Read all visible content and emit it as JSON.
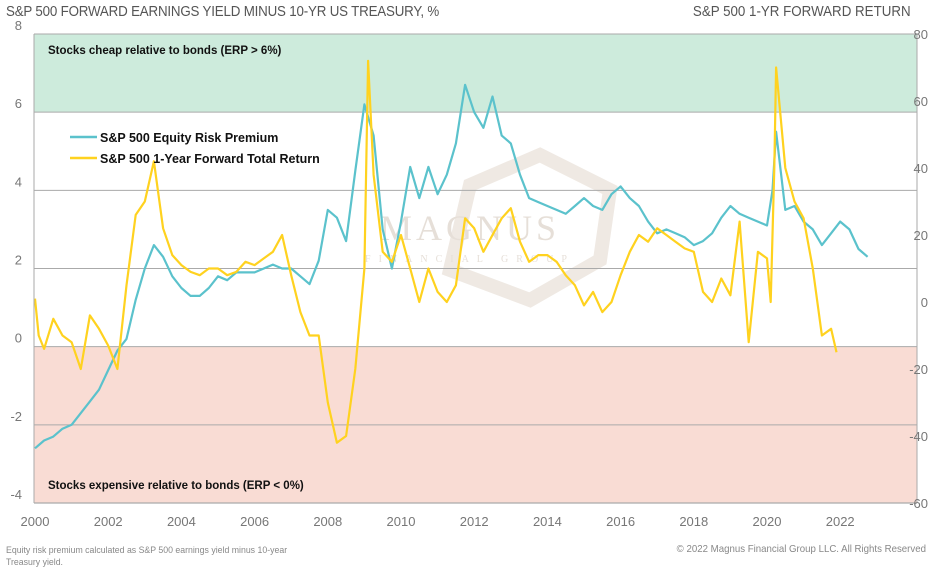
{
  "header": {
    "title_left": "S&P 500 FORWARD EARNINGS YIELD MINUS 10-YR US TREASURY, %",
    "title_right": "S&P 500 1-YR FORWARD RETURN"
  },
  "footer": {
    "footnote": "Equity risk premium calculated as S&P 500 earnings yield minus 10-year Treasury yield.",
    "copyright": "© 2022 Magnus Financial Group LLC. All Rights Reserved"
  },
  "watermark": {
    "text": "MAGNUS",
    "subtext": "FINANCIAL GROUP"
  },
  "colors": {
    "erp": "#5bc2cc",
    "return": "#ffd21f",
    "cheap_zone": "#cdebdc",
    "expensive_zone": "#f9dcd4",
    "grid": "#aaaaaa"
  },
  "chart_data": {
    "type": "line",
    "title": "S&P 500 FORWARD EARNINGS YIELD MINUS 10-YR US TREASURY, %",
    "ylabel_left": "S&P 500 FORWARD EARNINGS YIELD MINUS 10-YR US TREASURY, %",
    "ylabel_right": "S&P 500 1-YR FORWARD RETURN",
    "xlabel": "",
    "xlim": [
      2000,
      2023.5
    ],
    "ylim_left": [
      -4,
      8
    ],
    "ylim_right": [
      -60,
      80
    ],
    "x_ticks": [
      "2000",
      "2002",
      "2004",
      "2006",
      "2008",
      "2010",
      "2012",
      "2014",
      "2016",
      "2018",
      "2020",
      "2022"
    ],
    "y_ticks_left": [
      "8",
      "6",
      "4",
      "2",
      "0",
      "-2",
      "-4"
    ],
    "y_ticks_right": [
      "80",
      "60",
      "40",
      "20",
      "0",
      "-20",
      "-40",
      "-60"
    ],
    "grid": true,
    "legend_position": "top-left",
    "zones": [
      {
        "label": "Stocks cheap relative to bonds (ERP > 6%)",
        "from": 6,
        "to": 8
      },
      {
        "label": "Stocks expensive relative to bonds (ERP < 0%)",
        "from": -4,
        "to": 0
      }
    ],
    "series": [
      {
        "name": "S&P 500 Equity Risk Premium",
        "axis": "left",
        "x": [
          2000.0,
          2000.25,
          2000.5,
          2000.75,
          2001.0,
          2001.25,
          2001.5,
          2001.75,
          2002.0,
          2002.25,
          2002.5,
          2002.75,
          2003.0,
          2003.25,
          2003.5,
          2003.75,
          2004.0,
          2004.25,
          2004.5,
          2004.75,
          2005.0,
          2005.25,
          2005.5,
          2005.75,
          2006.0,
          2006.25,
          2006.5,
          2006.75,
          2007.0,
          2007.25,
          2007.5,
          2007.75,
          2008.0,
          2008.25,
          2008.5,
          2008.75,
          2009.0,
          2009.25,
          2009.5,
          2009.75,
          2010.0,
          2010.25,
          2010.5,
          2010.75,
          2011.0,
          2011.25,
          2011.5,
          2011.75,
          2012.0,
          2012.25,
          2012.5,
          2012.75,
          2013.0,
          2013.25,
          2013.5,
          2013.75,
          2014.0,
          2014.25,
          2014.5,
          2014.75,
          2015.0,
          2015.25,
          2015.5,
          2015.75,
          2016.0,
          2016.25,
          2016.5,
          2016.75,
          2017.0,
          2017.25,
          2017.5,
          2017.75,
          2018.0,
          2018.25,
          2018.5,
          2018.75,
          2019.0,
          2019.25,
          2019.5,
          2019.75,
          2020.0,
          2020.15,
          2020.25,
          2020.5,
          2020.75,
          2021.0,
          2021.25,
          2021.5,
          2021.75,
          2022.0,
          2022.25,
          2022.5,
          2022.75
        ],
        "values": [
          -2.6,
          -2.4,
          -2.3,
          -2.1,
          -2.0,
          -1.7,
          -1.4,
          -1.1,
          -0.6,
          -0.1,
          0.2,
          1.2,
          2.0,
          2.6,
          2.3,
          1.8,
          1.5,
          1.3,
          1.3,
          1.5,
          1.8,
          1.7,
          1.9,
          1.9,
          1.9,
          2.0,
          2.1,
          2.0,
          2.0,
          1.8,
          1.6,
          2.2,
          3.5,
          3.3,
          2.7,
          4.5,
          6.2,
          5.4,
          3.0,
          2.0,
          3.2,
          4.6,
          3.8,
          4.6,
          3.9,
          4.4,
          5.2,
          6.7,
          6.0,
          5.6,
          6.4,
          5.4,
          5.2,
          4.4,
          3.8,
          3.7,
          3.6,
          3.5,
          3.4,
          3.6,
          3.8,
          3.6,
          3.5,
          3.9,
          4.1,
          3.8,
          3.6,
          3.2,
          2.9,
          3.0,
          2.9,
          2.8,
          2.6,
          2.7,
          2.9,
          3.3,
          3.6,
          3.4,
          3.3,
          3.2,
          3.1,
          4.0,
          5.5,
          3.5,
          3.6,
          3.2,
          3.0,
          2.6,
          2.9,
          3.2,
          3.0,
          2.5,
          2.3
        ]
      },
      {
        "name": "S&P 500 1-Year Forward Total Return",
        "axis": "right",
        "x": [
          2000.0,
          2000.1,
          2000.25,
          2000.5,
          2000.75,
          2001.0,
          2001.25,
          2001.5,
          2001.75,
          2002.0,
          2002.25,
          2002.5,
          2002.75,
          2003.0,
          2003.25,
          2003.5,
          2003.75,
          2004.0,
          2004.25,
          2004.5,
          2004.75,
          2005.0,
          2005.25,
          2005.5,
          2005.75,
          2006.0,
          2006.25,
          2006.5,
          2006.75,
          2007.0,
          2007.25,
          2007.5,
          2007.75,
          2008.0,
          2008.25,
          2008.5,
          2008.75,
          2009.0,
          2009.1,
          2009.25,
          2009.5,
          2009.75,
          2010.0,
          2010.25,
          2010.5,
          2010.75,
          2011.0,
          2011.25,
          2011.5,
          2011.75,
          2012.0,
          2012.25,
          2012.5,
          2012.75,
          2013.0,
          2013.25,
          2013.5,
          2013.75,
          2014.0,
          2014.25,
          2014.5,
          2014.75,
          2015.0,
          2015.25,
          2015.5,
          2015.75,
          2016.0,
          2016.25,
          2016.5,
          2016.75,
          2017.0,
          2017.25,
          2017.5,
          2017.75,
          2018.0,
          2018.25,
          2018.5,
          2018.75,
          2019.0,
          2019.25,
          2019.5,
          2019.75,
          2020.0,
          2020.1,
          2020.2,
          2020.25,
          2020.5,
          2020.75,
          2021.0,
          2021.25,
          2021.5,
          2021.75,
          2021.9
        ],
        "values": [
          1,
          -10,
          -14,
          -5,
          -10,
          -12,
          -20,
          -4,
          -8,
          -13,
          -20,
          5,
          26,
          30,
          42,
          22,
          14,
          11,
          9,
          8,
          10,
          10,
          8,
          9,
          12,
          11,
          13,
          15,
          20,
          8,
          -3,
          -10,
          -10,
          -30,
          -42,
          -40,
          -20,
          10,
          72,
          38,
          15,
          12,
          20,
          10,
          0,
          10,
          3,
          0,
          5,
          25,
          22,
          15,
          20,
          25,
          28,
          18,
          12,
          14,
          14,
          12,
          8,
          5,
          -1,
          3,
          -3,
          0,
          8,
          15,
          20,
          18,
          22,
          20,
          18,
          16,
          15,
          3,
          0,
          7,
          2,
          24,
          -12,
          15,
          13,
          0,
          40,
          70,
          40,
          30,
          25,
          10,
          -10,
          -8,
          -15
        ]
      }
    ]
  }
}
